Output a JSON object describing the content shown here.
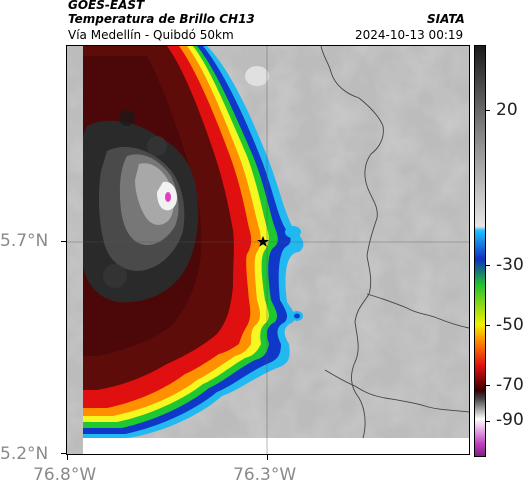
{
  "header": {
    "satellite": "GOES-EAST",
    "product": "Temperatura de Brillo CH13",
    "route": "Vía Medellín - Quibdó 50km",
    "agency": "SIATA",
    "timestamp": "2024-10-13 00:19"
  },
  "axes": {
    "x_ticks": [
      "76.8°W",
      "76.3°W"
    ],
    "y_ticks": [
      "5.7°N",
      "5.2°N"
    ]
  },
  "colorbar": {
    "ticks": [
      "20",
      "-30",
      "-50",
      "-70",
      "-90"
    ],
    "colors": {
      "warm_gray_top": "#1a1a1a",
      "warm_gray_bottom": "#e6e6e6",
      "cyan": "#20c0ff",
      "blue": "#1030c0",
      "green": "#20c030",
      "yellow": "#f0f000",
      "red": "#e01010",
      "dark_red": "#3a0000",
      "magenta": "#c040c0"
    }
  },
  "map": {
    "marker_icon": "star-icon",
    "grid_lines": true,
    "colors": {
      "cold_core": "#202020",
      "dark_red": "#5a0a08",
      "red": "#d01010",
      "orange": "#ff8800",
      "yellow": "#ffff20",
      "green": "#30d030",
      "blue": "#1040d0",
      "cyan": "#20b8f0",
      "clear_sky": "#b8b8b8",
      "boundary": "#444444"
    }
  }
}
